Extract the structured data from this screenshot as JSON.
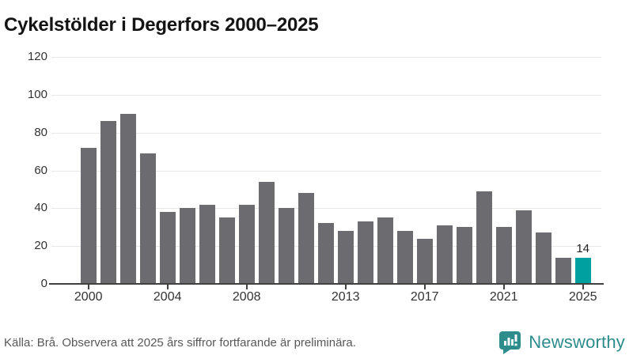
{
  "title": "Cykelstölder i Degerfors 2000–2025",
  "footer": {
    "source_note": "Källa: Brå. Observera att 2025 års siffror fortfarande är preliminära."
  },
  "branding": {
    "logo_text": "Newsworthy",
    "logo_icon": "bar-chart-speech-bubble-icon",
    "logo_color": "#2e8c8c"
  },
  "colors": {
    "bar_default": "#6b6b70",
    "bar_highlight": "#00a0a0",
    "gridline": "#e8e8e8",
    "axis": "#404040",
    "tick_text": "#333333",
    "title_text": "#141414",
    "footer_text": "#585858"
  },
  "chart_data": {
    "type": "bar",
    "title": "Cykelstölder i Degerfors 2000–2025",
    "categories": [
      2000,
      2001,
      2002,
      2003,
      2004,
      2005,
      2006,
      2007,
      2008,
      2009,
      2010,
      2011,
      2012,
      2013,
      2014,
      2015,
      2016,
      2017,
      2018,
      2019,
      2020,
      2021,
      2022,
      2023,
      2024,
      2025
    ],
    "values": [
      72,
      86,
      90,
      69,
      38,
      40,
      42,
      35,
      42,
      54,
      40,
      48,
      32,
      28,
      33,
      35,
      28,
      24,
      31,
      30,
      49,
      30,
      39,
      27,
      14,
      14
    ],
    "highlight_index": 25,
    "data_labels": [
      {
        "index": 25,
        "text": "14"
      }
    ],
    "xlabel": "",
    "ylabel": "",
    "ylim": [
      0,
      120
    ],
    "yticks": [
      0,
      20,
      40,
      60,
      80,
      100,
      120
    ],
    "xticks": [
      2000,
      2004,
      2008,
      2013,
      2017,
      2021,
      2025
    ],
    "grid": true,
    "legend": "none"
  }
}
